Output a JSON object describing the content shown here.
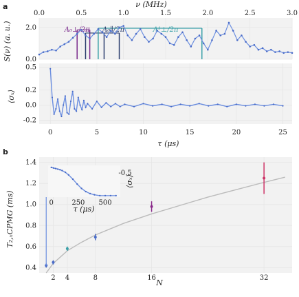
{
  "colors": {
    "series": "#6b8ee0",
    "series_dark": "#4a6cc8",
    "A_perp": "#7a2a8c",
    "A_par": "#2c3e6e",
    "A_1": "#3aa0a8",
    "fit": "#bbbbbb",
    "err_pink": "#cc3366",
    "err_purple": "#8a2a8a"
  },
  "panels": {
    "a": {
      "letter": "a"
    },
    "b": {
      "letter": "b"
    }
  },
  "annotations": {
    "A_perp": "A₀⊥/2π",
    "A_par": "A₀∥/2π",
    "A_1": "A¹⊥/2π"
  },
  "chart_data": [
    {
      "type": "line",
      "name": "spectrum",
      "xlabel": "ν (MHz)",
      "ylabel": "S(ν) (a. u.)",
      "xlim": [
        0,
        3.0
      ],
      "ylim": [
        0,
        2.6
      ],
      "xticks": [
        "0.0",
        "0.5",
        "1.0",
        "1.5",
        "2.0",
        "2.5",
        "3.0"
      ],
      "yticks": [
        "0.0",
        "2.0"
      ],
      "x": [
        0.0,
        0.05,
        0.1,
        0.15,
        0.2,
        0.25,
        0.3,
        0.35,
        0.4,
        0.45,
        0.5,
        0.55,
        0.6,
        0.65,
        0.7,
        0.75,
        0.8,
        0.85,
        0.9,
        0.95,
        1.0,
        1.05,
        1.1,
        1.15,
        1.2,
        1.25,
        1.3,
        1.35,
        1.4,
        1.45,
        1.5,
        1.55,
        1.6,
        1.65,
        1.7,
        1.75,
        1.8,
        1.85,
        1.9,
        1.95,
        2.0,
        2.05,
        2.1,
        2.15,
        2.2,
        2.25,
        2.3,
        2.35,
        2.4,
        2.45,
        2.5,
        2.55,
        2.6,
        2.65,
        2.7,
        2.75,
        2.8,
        2.85,
        2.9,
        2.95,
        3.0
      ],
      "y": [
        0.3,
        0.45,
        0.5,
        0.6,
        0.55,
        0.8,
        0.95,
        1.1,
        1.35,
        1.6,
        1.85,
        1.5,
        1.3,
        1.6,
        1.9,
        1.7,
        1.4,
        1.8,
        1.6,
        2.0,
        2.1,
        1.5,
        1.2,
        1.6,
        1.9,
        1.4,
        1.1,
        1.3,
        1.8,
        1.6,
        1.4,
        1.0,
        0.9,
        1.4,
        1.7,
        1.2,
        0.8,
        1.3,
        1.5,
        1.0,
        0.6,
        1.2,
        1.8,
        1.5,
        1.6,
        2.3,
        1.8,
        1.2,
        1.5,
        1.1,
        0.8,
        0.9,
        0.6,
        0.7,
        0.5,
        0.6,
        0.45,
        0.5,
        0.4,
        0.45,
        0.4
      ],
      "markers": {
        "A_perp_MHz": [
          0.45,
          0.6
        ],
        "A_par_MHz": [
          0.55,
          0.77,
          0.95
        ],
        "A_1_MHz": [
          0.7,
          1.93
        ]
      }
    },
    {
      "type": "line",
      "name": "coherence",
      "xlabel": "τ (μs)",
      "ylabel": "⟨σₓ⟩",
      "xlim": [
        -1.2,
        26
      ],
      "ylim": [
        -0.25,
        0.55
      ],
      "xticks": [
        "0",
        "5",
        "10",
        "15",
        "20",
        "25"
      ],
      "yticks": [
        "-0.2",
        "0.0",
        "0.2",
        "0.5"
      ],
      "x": [
        0.0,
        0.2,
        0.4,
        0.6,
        0.8,
        1.0,
        1.2,
        1.4,
        1.6,
        1.8,
        2.0,
        2.2,
        2.4,
        2.6,
        2.8,
        3.0,
        3.2,
        3.4,
        3.6,
        3.8,
        4.0,
        4.5,
        5.0,
        5.5,
        6.0,
        6.5,
        7.0,
        7.5,
        8.0,
        9.0,
        10.0,
        11.0,
        12.0,
        13.0,
        14.0,
        15.0,
        16.0,
        17.0,
        18.0,
        19.0,
        20.0,
        21.0,
        22.0,
        23.0,
        24.0,
        25.0
      ],
      "y": [
        0.48,
        0.1,
        -0.12,
        -0.05,
        0.08,
        -0.08,
        -0.15,
        0.0,
        0.12,
        -0.1,
        -0.12,
        0.05,
        0.18,
        -0.05,
        -0.08,
        0.1,
        0.0,
        -0.06,
        0.06,
        -0.03,
        0.02,
        -0.05,
        0.05,
        -0.03,
        0.03,
        -0.02,
        0.02,
        -0.02,
        0.01,
        -0.02,
        0.02,
        -0.01,
        0.01,
        -0.02,
        0.01,
        -0.01,
        0.02,
        -0.01,
        0.01,
        -0.02,
        0.01,
        -0.01,
        0.01,
        -0.01,
        0.01,
        -0.01
      ]
    },
    {
      "type": "scatter",
      "name": "T2_vs_N",
      "xlabel": "N",
      "ylabel": "T₂,ₓCPMG (ms)",
      "xlim": [
        0,
        36
      ],
      "ylim": [
        0.35,
        1.45
      ],
      "xticks": [
        "2",
        "4",
        "8",
        "16",
        "32"
      ],
      "yticks": [
        "0.4",
        "0.6",
        "0.8",
        "1.0",
        "1.2",
        "1.4"
      ],
      "points": [
        {
          "x": 1,
          "y": 0.42,
          "err": 0.02,
          "color": "series_dark"
        },
        {
          "x": 2,
          "y": 0.45,
          "err": 0.02,
          "color": "series_dark"
        },
        {
          "x": 4,
          "y": 0.58,
          "err": 0.02,
          "color": "A_1"
        },
        {
          "x": 8,
          "y": 0.69,
          "err": 0.03,
          "color": "series_dark"
        },
        {
          "x": 16,
          "y": 0.98,
          "err": 0.05,
          "color": "err_purple"
        },
        {
          "x": 32,
          "y": 1.25,
          "err": 0.15,
          "color": "err_pink"
        }
      ],
      "fit": {
        "x": [
          1,
          2,
          4,
          6,
          8,
          12,
          16,
          20,
          24,
          28,
          32,
          35
        ],
        "y": [
          0.35,
          0.44,
          0.56,
          0.64,
          0.71,
          0.82,
          0.91,
          0.99,
          1.07,
          1.14,
          1.21,
          1.26
        ]
      }
    },
    {
      "type": "line",
      "name": "inset",
      "xlabel": "τ (μs)",
      "ylabel": "⟨σₓ⟩",
      "xlim": [
        -30,
        640
      ],
      "ylim": [
        -0.55,
        0.55
      ],
      "xticks": [
        "0",
        "250",
        "500"
      ],
      "yticks": [
        "-0.5"
      ],
      "x": [
        0,
        20,
        40,
        60,
        80,
        100,
        130,
        160,
        200,
        240,
        280,
        320,
        360,
        400,
        450,
        500,
        550,
        600
      ],
      "y": [
        0.48,
        0.46,
        0.44,
        0.42,
        0.4,
        0.37,
        0.31,
        0.22,
        0.07,
        -0.1,
        -0.25,
        -0.36,
        -0.43,
        -0.47,
        -0.5,
        -0.5,
        -0.5,
        -0.5
      ]
    }
  ]
}
